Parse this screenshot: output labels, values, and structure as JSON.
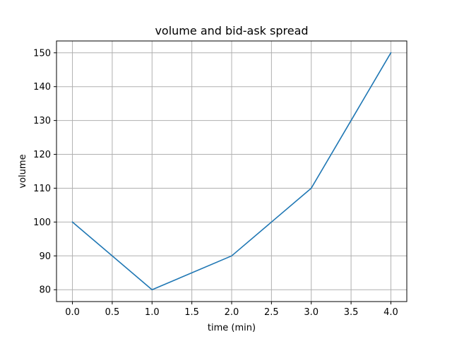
{
  "chart_data": {
    "type": "line",
    "title": "volume and bid-ask spread",
    "xlabel": "time (min)",
    "ylabel": "volume",
    "x": [
      0.0,
      1.0,
      2.0,
      3.0,
      4.0
    ],
    "series": [
      {
        "values": [
          100,
          80,
          90,
          110,
          150
        ],
        "color": "#1f77b4"
      }
    ],
    "xlim": [
      -0.2,
      4.2
    ],
    "ylim": [
      76.5,
      153.5
    ],
    "xticks": [
      0.0,
      0.5,
      1.0,
      1.5,
      2.0,
      2.5,
      3.0,
      3.5,
      4.0
    ],
    "xtick_labels": [
      "0.0",
      "0.5",
      "1.0",
      "1.5",
      "2.0",
      "2.5",
      "3.0",
      "3.5",
      "4.0"
    ],
    "yticks": [
      80,
      90,
      100,
      110,
      120,
      130,
      140,
      150
    ],
    "ytick_labels": [
      "80",
      "90",
      "100",
      "110",
      "120",
      "130",
      "140",
      "150"
    ],
    "grid": true,
    "grid_color": "#b0b0b0"
  }
}
